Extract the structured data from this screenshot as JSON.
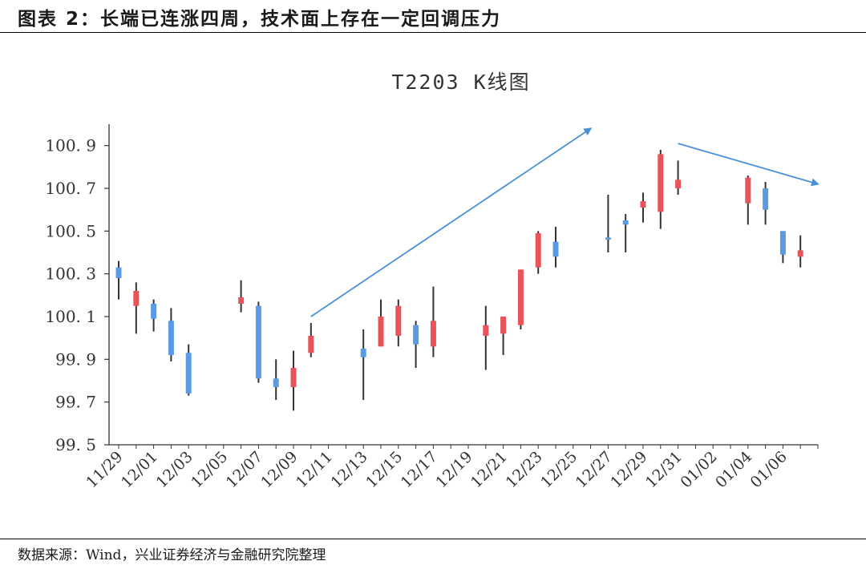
{
  "figure": {
    "title": "图表 2：长端已连涨四周，技术面上存在一定回调压力",
    "source": "数据来源：Wind，兴业证券经济与金融研究院整理"
  },
  "colors": {
    "up": "#e8545a",
    "down": "#5b9be3",
    "wick": "#333333",
    "axis": "#333333",
    "arrow": "#4a90d9"
  },
  "chart_data": {
    "type": "candlestick",
    "title": "T2203 K线图",
    "ylim": [
      99.5,
      101.0
    ],
    "yticks": [
      99.5,
      99.7,
      99.9,
      100.1,
      100.3,
      100.5,
      100.7,
      100.9
    ],
    "ytick_labels": [
      "99. 5",
      "99. 7",
      "99. 9",
      "100. 1",
      "100. 3",
      "100. 5",
      "100. 7",
      "100. 9"
    ],
    "xtick_labels": [
      "11/29",
      "12/01",
      "12/03",
      "12/05",
      "12/07",
      "12/09",
      "12/11",
      "12/13",
      "12/15",
      "12/17",
      "12/19",
      "12/21",
      "12/23",
      "12/25",
      "12/27",
      "12/29",
      "12/31",
      "01/02",
      "01/04",
      "01/06"
    ],
    "x_range": [
      "11/29",
      "01/08"
    ],
    "grid": false,
    "candles": [
      {
        "date": "11/29",
        "open": 100.33,
        "high": 100.36,
        "low": 100.18,
        "close": 100.28
      },
      {
        "date": "11/30",
        "open": 100.15,
        "high": 100.26,
        "low": 100.02,
        "close": 100.22
      },
      {
        "date": "12/01",
        "open": 100.16,
        "high": 100.18,
        "low": 100.03,
        "close": 100.09
      },
      {
        "date": "12/02",
        "open": 100.08,
        "high": 100.14,
        "low": 99.89,
        "close": 99.92
      },
      {
        "date": "12/03",
        "open": 99.93,
        "high": 99.97,
        "low": 99.73,
        "close": 99.74
      },
      {
        "date": "12/06",
        "open": 100.16,
        "high": 100.27,
        "low": 100.12,
        "close": 100.19
      },
      {
        "date": "12/07",
        "open": 100.15,
        "high": 100.17,
        "low": 99.79,
        "close": 99.81
      },
      {
        "date": "12/08",
        "open": 99.81,
        "high": 99.9,
        "low": 99.71,
        "close": 99.77
      },
      {
        "date": "12/09",
        "open": 99.77,
        "high": 99.94,
        "low": 99.66,
        "close": 99.86
      },
      {
        "date": "12/10",
        "open": 99.93,
        "high": 100.07,
        "low": 99.91,
        "close": 100.01
      },
      {
        "date": "12/13",
        "open": 99.95,
        "high": 100.04,
        "low": 99.71,
        "close": 99.91
      },
      {
        "date": "12/14",
        "open": 99.96,
        "high": 100.18,
        "low": 99.96,
        "close": 100.1
      },
      {
        "date": "12/15",
        "open": 100.01,
        "high": 100.18,
        "low": 99.96,
        "close": 100.15
      },
      {
        "date": "12/16",
        "open": 100.06,
        "high": 100.08,
        "low": 99.86,
        "close": 99.97
      },
      {
        "date": "12/17",
        "open": 99.96,
        "high": 100.24,
        "low": 99.91,
        "close": 100.08
      },
      {
        "date": "12/20",
        "open": 100.01,
        "high": 100.15,
        "low": 99.85,
        "close": 100.06
      },
      {
        "date": "12/21",
        "open": 100.02,
        "high": 100.1,
        "low": 99.92,
        "close": 100.1
      },
      {
        "date": "12/22",
        "open": 100.06,
        "high": 100.32,
        "low": 100.04,
        "close": 100.32
      },
      {
        "date": "12/23",
        "open": 100.33,
        "high": 100.5,
        "low": 100.3,
        "close": 100.49
      },
      {
        "date": "12/24",
        "open": 100.45,
        "high": 100.52,
        "low": 100.33,
        "close": 100.38
      },
      {
        "date": "12/27",
        "open": 100.47,
        "high": 100.67,
        "low": 100.4,
        "close": 100.46
      },
      {
        "date": "12/28",
        "open": 100.55,
        "high": 100.58,
        "low": 100.4,
        "close": 100.53
      },
      {
        "date": "12/29",
        "open": 100.61,
        "high": 100.68,
        "low": 100.54,
        "close": 100.64
      },
      {
        "date": "12/30",
        "open": 100.59,
        "high": 100.88,
        "low": 100.51,
        "close": 100.86
      },
      {
        "date": "12/31",
        "open": 100.7,
        "high": 100.83,
        "low": 100.67,
        "close": 100.74
      },
      {
        "date": "01/04",
        "open": 100.63,
        "high": 100.76,
        "low": 100.53,
        "close": 100.75
      },
      {
        "date": "01/05",
        "open": 100.7,
        "high": 100.73,
        "low": 100.53,
        "close": 100.6
      },
      {
        "date": "01/06",
        "open": 100.5,
        "high": 100.5,
        "low": 100.35,
        "close": 100.39
      },
      {
        "date": "01/07",
        "open": 100.38,
        "high": 100.48,
        "low": 100.33,
        "close": 100.41
      }
    ],
    "annotations": [
      {
        "type": "arrow",
        "from": {
          "date": "12/10",
          "value": 100.1
        },
        "to": {
          "date": "12/26",
          "value": 100.98
        }
      },
      {
        "type": "arrow",
        "from": {
          "date": "12/31",
          "value": 100.91
        },
        "to": {
          "date": "01/08",
          "value": 100.72
        }
      }
    ]
  }
}
